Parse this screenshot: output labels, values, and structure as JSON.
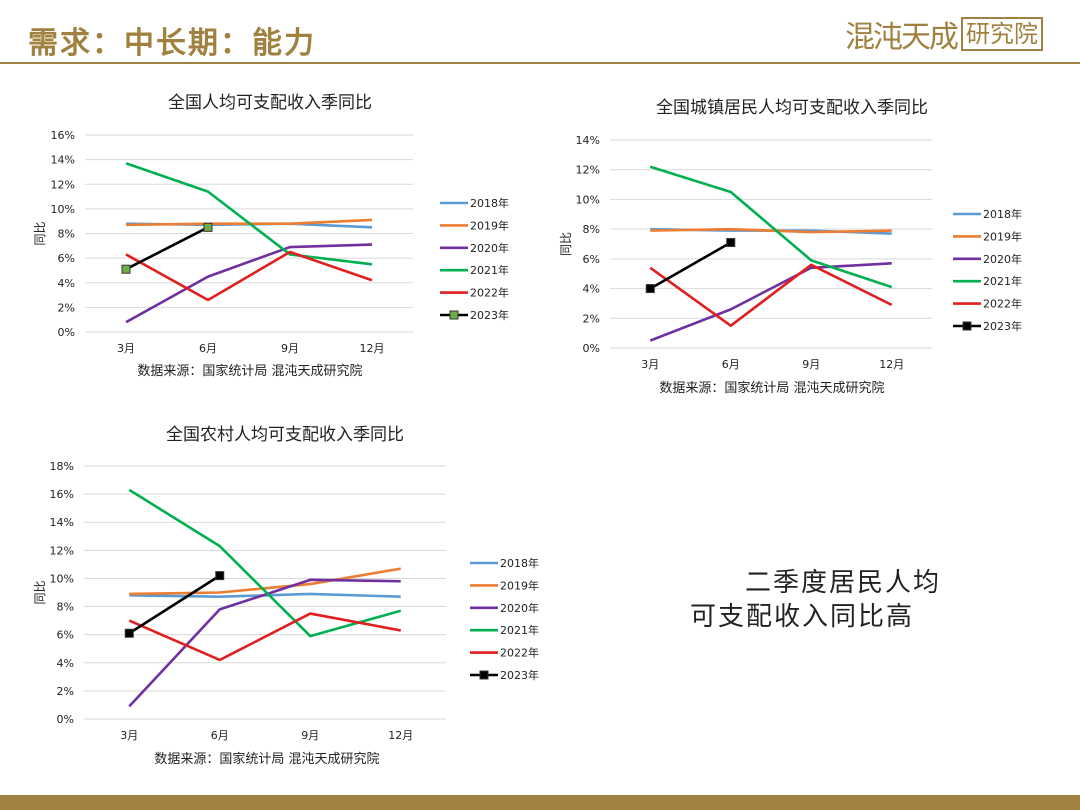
{
  "header": {
    "title": "需求：中长期：能力",
    "logo_text": "混沌天成",
    "logo_box": "研究院"
  },
  "note": {
    "line1": "二季度居民人均",
    "line2": "可支配收入同比高"
  },
  "colors": {
    "accent": "#a0813f",
    "s2018": "#5b9bd5",
    "s2019": "#ed7d31",
    "s2020": "#7030a0",
    "s2021": "#00b050",
    "s2022": "#e02020",
    "s2023": "#000000",
    "s2023_marker_fill_chart1": "#70ad47"
  },
  "chart_data": [
    {
      "type": "line",
      "title": "全国人均可支配收入季同比",
      "ylabel": "同比",
      "xlabel": "",
      "source": "数据来源：国家统计局 混沌天成研究院",
      "categories": [
        "3月",
        "6月",
        "9月",
        "12月"
      ],
      "ylim": [
        0,
        16
      ],
      "yticks": [
        "0%",
        "2%",
        "4%",
        "6%",
        "8%",
        "10%",
        "12%",
        "14%",
        "16%"
      ],
      "grid": true,
      "legend_position": "right",
      "series": [
        {
          "name": "2018年",
          "values": [
            8.8,
            8.7,
            8.8,
            8.5
          ]
        },
        {
          "name": "2019年",
          "values": [
            8.7,
            8.8,
            8.8,
            9.1
          ]
        },
        {
          "name": "2020年",
          "values": [
            0.8,
            4.5,
            6.9,
            7.1
          ]
        },
        {
          "name": "2021年",
          "values": [
            13.7,
            11.4,
            6.3,
            5.5
          ]
        },
        {
          "name": "2022年",
          "values": [
            6.3,
            2.6,
            6.5,
            4.2
          ]
        },
        {
          "name": "2023年",
          "values": [
            5.1,
            8.5,
            null,
            null
          ]
        }
      ]
    },
    {
      "type": "line",
      "title": "全国城镇居民人均可支配收入季同比",
      "ylabel": "同比",
      "xlabel": "",
      "source": "数据来源：国家统计局 混沌天成研究院",
      "categories": [
        "3月",
        "6月",
        "9月",
        "12月"
      ],
      "ylim": [
        0,
        14
      ],
      "yticks": [
        "0%",
        "2%",
        "4%",
        "6%",
        "8%",
        "10%",
        "12%",
        "14%"
      ],
      "grid": true,
      "legend_position": "right",
      "series": [
        {
          "name": "2018年",
          "values": [
            8.0,
            7.9,
            7.9,
            7.7
          ]
        },
        {
          "name": "2019年",
          "values": [
            7.9,
            8.0,
            7.8,
            7.9
          ]
        },
        {
          "name": "2020年",
          "values": [
            0.5,
            2.6,
            5.4,
            5.7
          ]
        },
        {
          "name": "2021年",
          "values": [
            12.2,
            10.5,
            5.9,
            4.1
          ]
        },
        {
          "name": "2022年",
          "values": [
            5.4,
            1.5,
            5.6,
            2.9
          ]
        },
        {
          "name": "2023年",
          "values": [
            4.0,
            7.1,
            null,
            null
          ]
        }
      ]
    },
    {
      "type": "line",
      "title": "全国农村人均可支配收入季同比",
      "ylabel": "同比",
      "xlabel": "",
      "source": "数据来源：国家统计局 混沌天成研究院",
      "categories": [
        "3月",
        "6月",
        "9月",
        "12月"
      ],
      "ylim": [
        0,
        18
      ],
      "yticks": [
        "0%",
        "2%",
        "4%",
        "6%",
        "8%",
        "10%",
        "12%",
        "14%",
        "16%",
        "18%"
      ],
      "grid": true,
      "legend_position": "right",
      "series": [
        {
          "name": "2018年",
          "values": [
            8.8,
            8.7,
            8.9,
            8.7
          ]
        },
        {
          "name": "2019年",
          "values": [
            8.9,
            9.0,
            9.6,
            10.7
          ]
        },
        {
          "name": "2020年",
          "values": [
            0.9,
            7.8,
            9.9,
            9.8
          ]
        },
        {
          "name": "2021年",
          "values": [
            16.3,
            12.3,
            5.9,
            7.7
          ]
        },
        {
          "name": "2022年",
          "values": [
            7.0,
            4.2,
            7.5,
            6.3
          ]
        },
        {
          "name": "2023年",
          "values": [
            6.1,
            10.2,
            null,
            null
          ]
        }
      ]
    }
  ]
}
